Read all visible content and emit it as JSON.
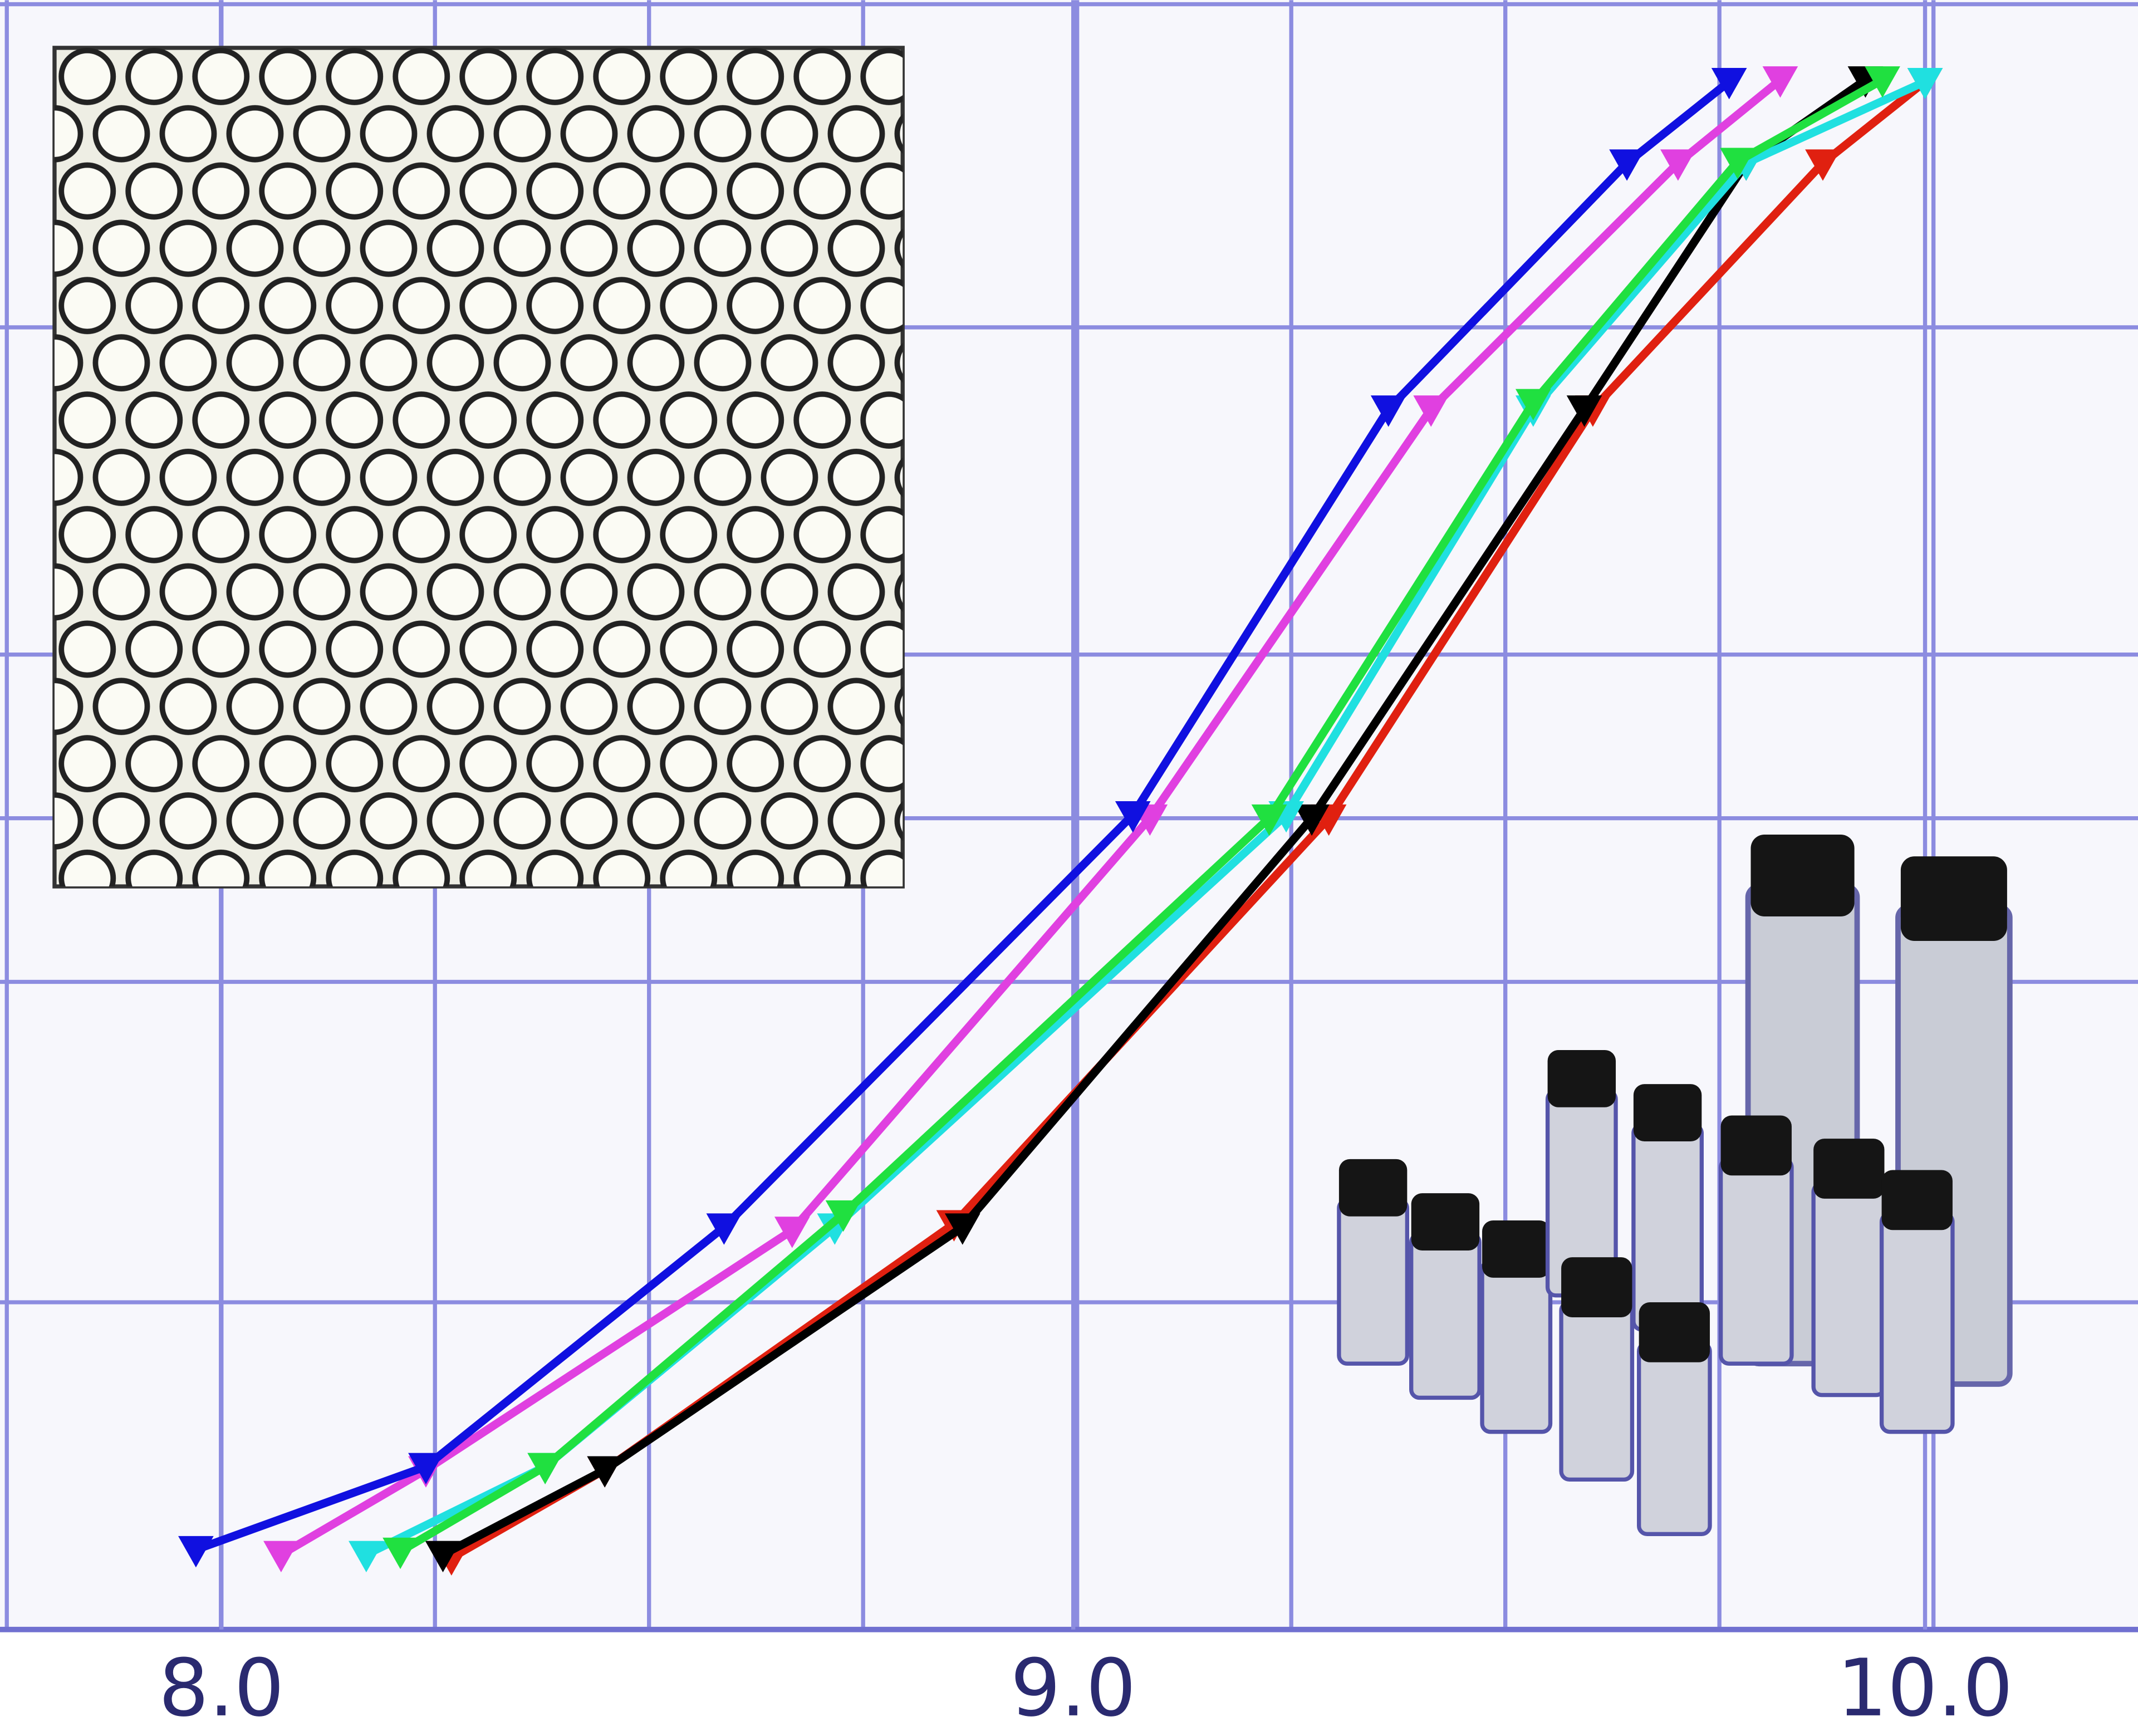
{
  "chart_data": {
    "type": "line",
    "xlim": [
      7.74,
      10.25
    ],
    "ylim": [
      0,
      100
    ],
    "xticks": [
      {
        "value": 8,
        "label": "8.0"
      },
      {
        "value": 9,
        "label": "9.0"
      },
      {
        "value": 10,
        "label": "10.0"
      }
    ],
    "grid": true,
    "series": [
      {
        "color": "#e02010",
        "x": [
          8.27,
          8.45,
          8.86,
          9.3,
          9.61,
          9.88,
          10.0
        ],
        "values": [
          4.4,
          9.8,
          24.9,
          49.8,
          74.9,
          90,
          95
        ]
      },
      {
        "color": "#000000",
        "x": [
          8.26,
          8.45,
          8.87,
          9.28,
          9.6,
          9.79,
          9.93
        ],
        "values": [
          4.6,
          9.8,
          24.7,
          49.8,
          74.9,
          90,
          95.1
        ]
      },
      {
        "color": "#20e0e0",
        "x": [
          8.17,
          8.38,
          8.72,
          9.25,
          9.54,
          9.79,
          10.0
        ],
        "values": [
          4.6,
          10,
          24.7,
          50,
          74.9,
          90,
          95
        ]
      },
      {
        "color": "#20e040",
        "x": [
          8.21,
          8.38,
          8.73,
          9.23,
          9.54,
          9.78,
          9.95
        ],
        "values": [
          4.8,
          10,
          25.5,
          49.8,
          75.3,
          90.1,
          95.1
        ]
      },
      {
        "color": "#e040e0",
        "x": [
          8.07,
          8.24,
          8.67,
          9.09,
          9.42,
          9.71,
          9.83
        ],
        "values": [
          4.6,
          9.8,
          24.5,
          49.8,
          74.9,
          90,
          95.1
        ]
      },
      {
        "color": "#1010e0",
        "x": [
          7.97,
          8.24,
          8.59,
          9.07,
          9.37,
          9.65,
          9.77
        ],
        "values": [
          4.9,
          10,
          24.7,
          50,
          74.9,
          90,
          95
        ]
      }
    ]
  }
}
